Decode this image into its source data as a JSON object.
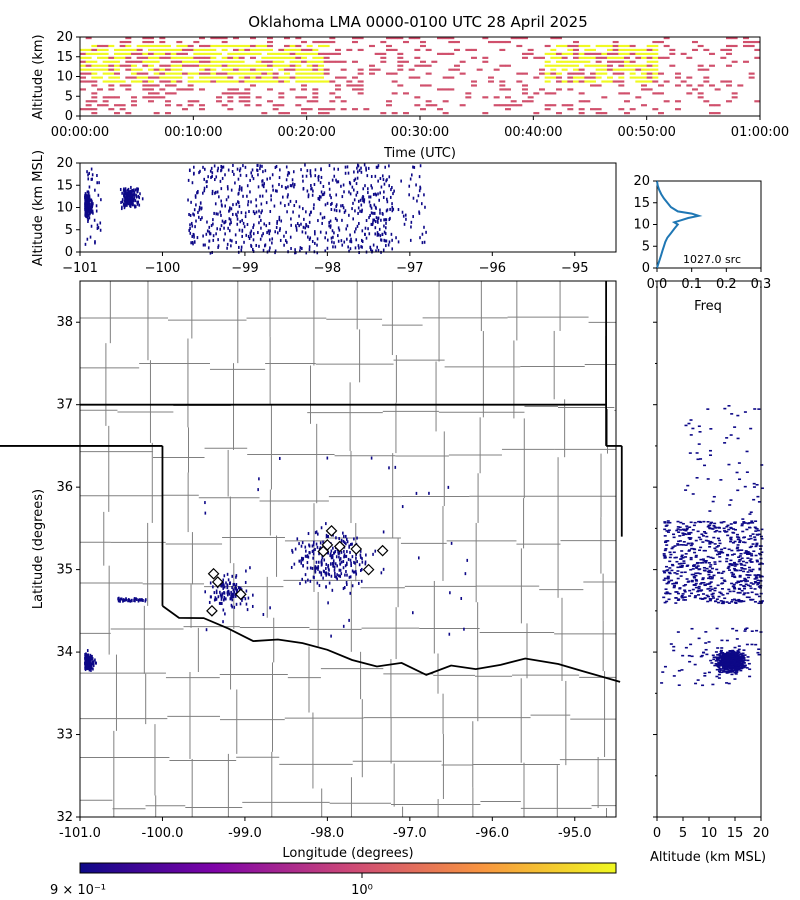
{
  "title": "Oklahoma LMA 0000-0100 UTC 28 April 2025",
  "colors": {
    "density_high": "#f0f921",
    "density_low": "#d0506c",
    "source": "#0d0887",
    "hist_line": "#1f77b4",
    "county_line": "#808080",
    "state_line": "#000000"
  },
  "chart_data": [
    {
      "type": "heatmap",
      "name": "time-height",
      "xlabel": "Time (UTC)",
      "ylabel": "Altitude (km)",
      "xlim": [
        "00:00:00",
        "01:00:00"
      ],
      "ylim": [
        0,
        20
      ],
      "x_ticks": [
        "00:00:00",
        "00:10:00",
        "00:20:00",
        "00:30:00",
        "00:40:00",
        "00:50:00",
        "01:00:00"
      ],
      "y_ticks": [
        "0",
        "5",
        "10",
        "15",
        "20"
      ],
      "yellow_core_minutes": [
        [
          0,
          22
        ],
        [
          41,
          51
        ]
      ],
      "altitude_core_km": [
        8,
        18
      ]
    },
    {
      "type": "scatter",
      "name": "lon-alt",
      "xlabel": "",
      "ylabel": "Altitude (km MSL)",
      "xlim": [
        -101,
        -94.5
      ],
      "ylim": [
        0,
        20
      ],
      "x_ticks": [
        "−101",
        "−100",
        "−99",
        "−98",
        "−97",
        "−96",
        "−95"
      ],
      "y_ticks": [
        "0",
        "5",
        "10",
        "15",
        "20"
      ]
    },
    {
      "type": "line",
      "name": "altitude-histogram",
      "xlabel": "Freq",
      "ylabel": "",
      "xlim": [
        0,
        0.3
      ],
      "ylim": [
        0,
        20
      ],
      "x_ticks": [
        "0.0",
        "0.1",
        "0.2",
        "0.3"
      ],
      "y_ticks": [
        "0",
        "5",
        "10",
        "15",
        "20"
      ],
      "annotation": "1027.0 src",
      "points": [
        {
          "alt": 0,
          "freq": 0.0
        },
        {
          "alt": 1,
          "freq": 0.004
        },
        {
          "alt": 2,
          "freq": 0.008
        },
        {
          "alt": 3,
          "freq": 0.012
        },
        {
          "alt": 4,
          "freq": 0.016
        },
        {
          "alt": 5,
          "freq": 0.02
        },
        {
          "alt": 6,
          "freq": 0.024
        },
        {
          "alt": 7,
          "freq": 0.03
        },
        {
          "alt": 8,
          "freq": 0.04
        },
        {
          "alt": 9,
          "freq": 0.05
        },
        {
          "alt": 10,
          "freq": 0.06
        },
        {
          "alt": 10.5,
          "freq": 0.05
        },
        {
          "alt": 11,
          "freq": 0.07
        },
        {
          "alt": 11.5,
          "freq": 0.09
        },
        {
          "alt": 12,
          "freq": 0.12
        },
        {
          "alt": 12.5,
          "freq": 0.1
        },
        {
          "alt": 13,
          "freq": 0.06
        },
        {
          "alt": 14,
          "freq": 0.04
        },
        {
          "alt": 15,
          "freq": 0.03
        },
        {
          "alt": 16,
          "freq": 0.02
        },
        {
          "alt": 17,
          "freq": 0.012
        },
        {
          "alt": 18,
          "freq": 0.006
        },
        {
          "alt": 19,
          "freq": 0.002
        },
        {
          "alt": 20,
          "freq": 0.0
        }
      ]
    },
    {
      "type": "scatter",
      "name": "plan-view-map",
      "xlabel": "Longitude (degrees)",
      "ylabel": "Latitude (degrees)",
      "xlim": [
        -101.0,
        -94.5
      ],
      "ylim": [
        32,
        38.5
      ],
      "x_ticks": [
        "-101.0",
        "-100.0",
        "-99.0",
        "-98.0",
        "-97.0",
        "-96.0",
        "-95.0"
      ],
      "y_ticks": [
        "32",
        "33",
        "34",
        "35",
        "36",
        "37",
        "38"
      ],
      "stations": [
        {
          "lon": -97.95,
          "lat": 35.47
        },
        {
          "lon": -98.0,
          "lat": 35.3
        },
        {
          "lon": -97.85,
          "lat": 35.28
        },
        {
          "lon": -98.05,
          "lat": 35.22
        },
        {
          "lon": -97.65,
          "lat": 35.25
        },
        {
          "lon": -97.5,
          "lat": 35.0
        },
        {
          "lon": -97.33,
          "lat": 35.23
        },
        {
          "lon": -99.38,
          "lat": 34.95
        },
        {
          "lon": -99.33,
          "lat": 34.85
        },
        {
          "lon": -99.05,
          "lat": 34.7
        },
        {
          "lon": -99.4,
          "lat": 34.5
        }
      ]
    },
    {
      "type": "scatter",
      "name": "alt-lat",
      "xlabel": "Altitude (km MSL)",
      "ylabel": "",
      "xlim": [
        0,
        20
      ],
      "ylim": [
        32,
        38.5
      ],
      "x_ticks": [
        "0",
        "5",
        "10",
        "15",
        "20"
      ]
    },
    {
      "type": "heatmap",
      "name": "colorbar",
      "tick_labels": [
        "9 × 10⁻¹",
        "10⁰"
      ]
    }
  ]
}
